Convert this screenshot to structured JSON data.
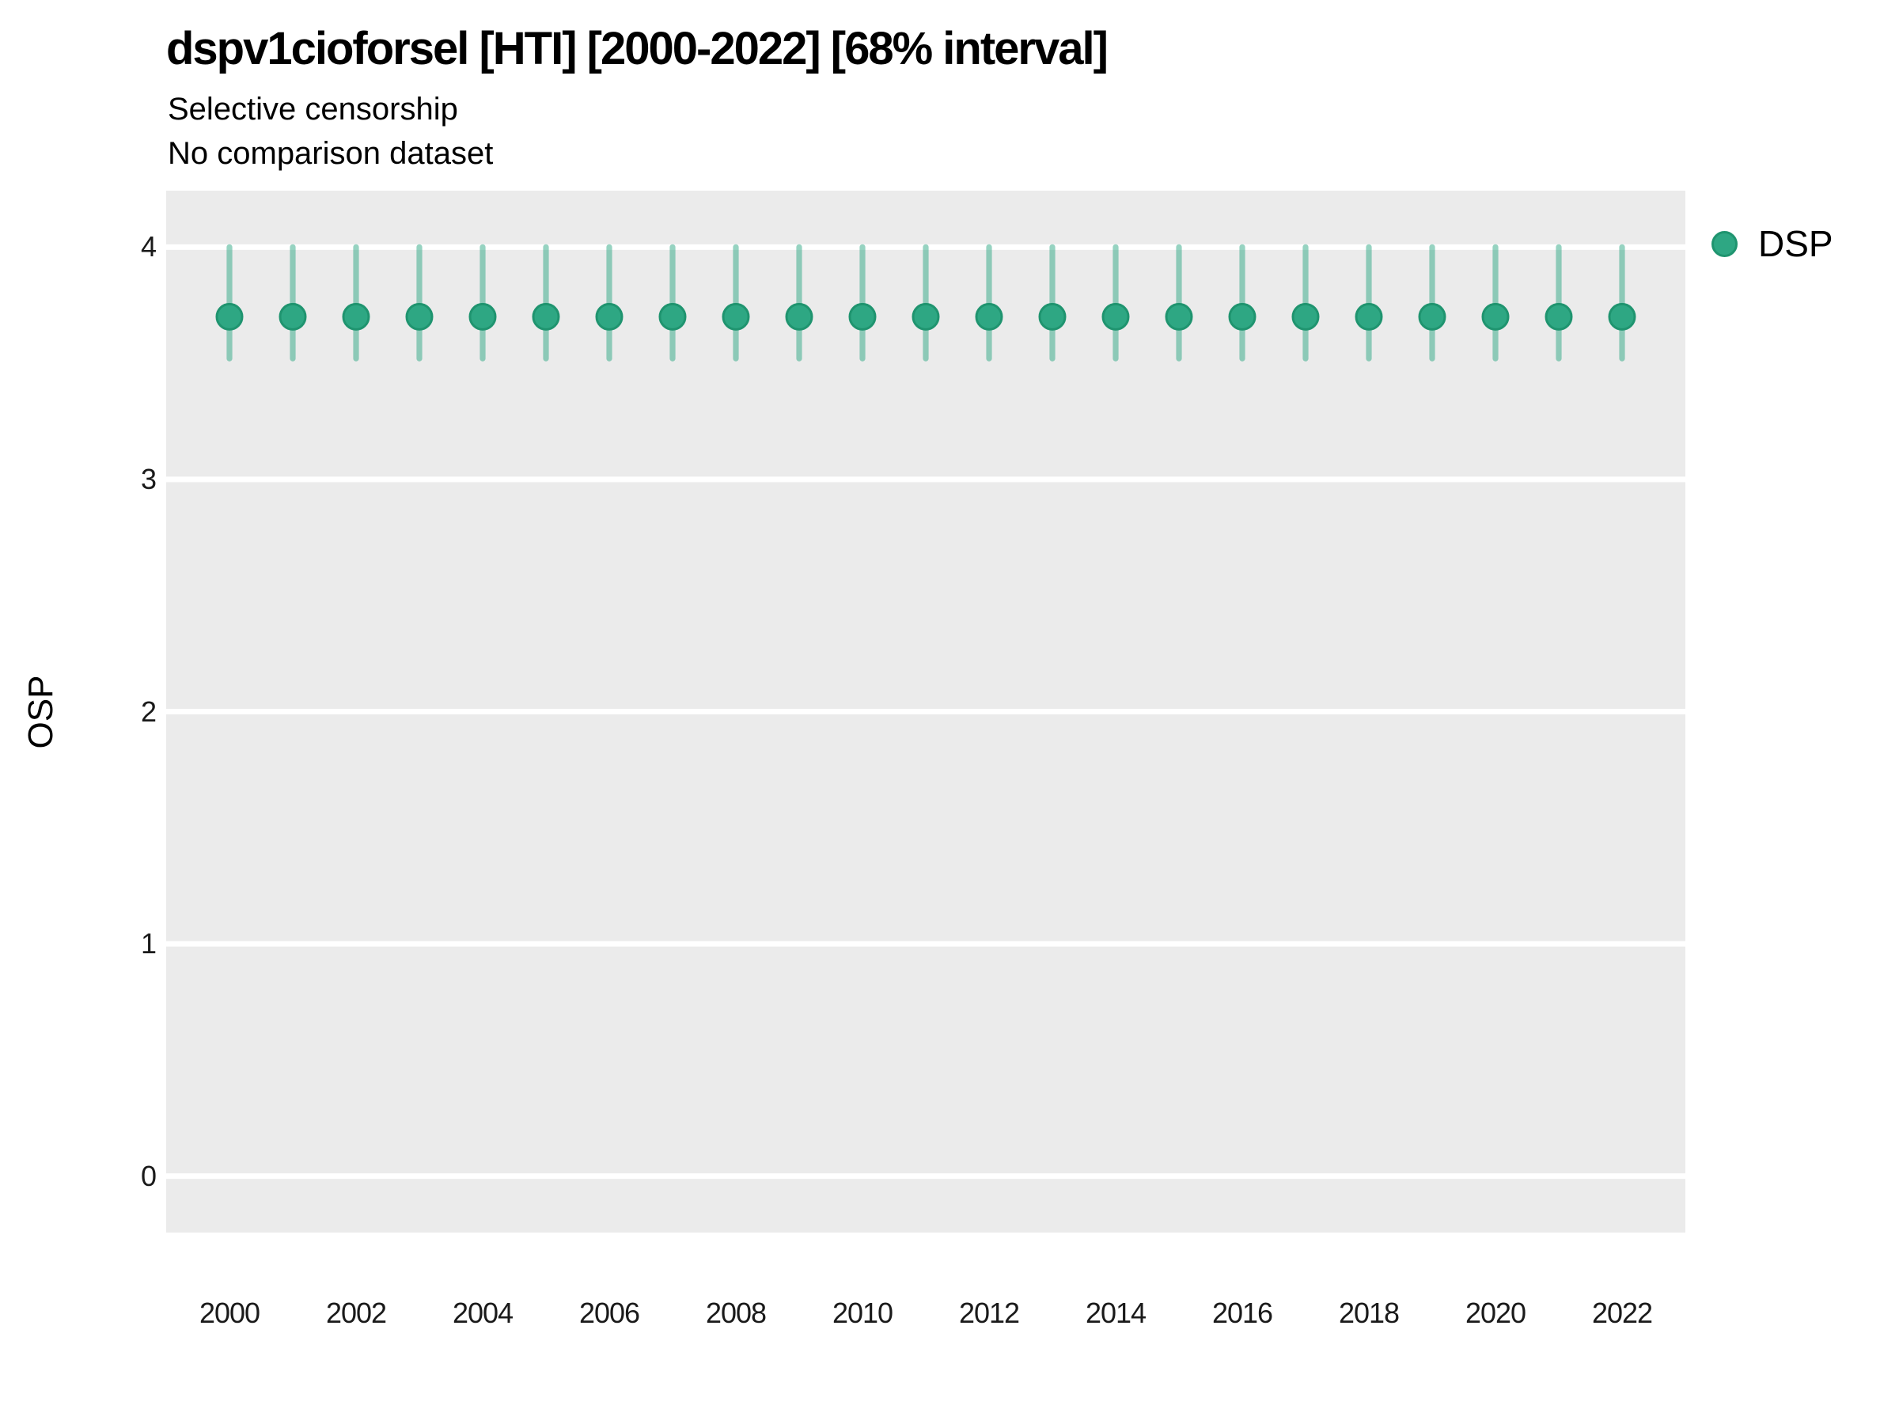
{
  "title": "dspv1cioforsel [HTI] [2000-2022] [68% interval]",
  "subtitle_line1": "Selective censorship",
  "subtitle_line2": "No comparison dataset",
  "y_axis_title": "OSP",
  "legend": {
    "label": "DSP",
    "position": "right-top"
  },
  "colors": {
    "panel_background": "#EBEBEB",
    "gridline": "#FFFFFF",
    "point_fill": "#2EA783",
    "point_stroke": "#1F946F",
    "error_bar": "rgba(46,167,131,0.5)",
    "text": "#000000"
  },
  "chart_data": {
    "type": "scatter",
    "subtype": "pointrange-errorbar",
    "title": "dspv1cioforsel [HTI] [2000-2022] [68% interval]",
    "subtitle": [
      "Selective censorship",
      "No comparison dataset"
    ],
    "interval": "68%",
    "xlabel": "",
    "ylabel": "OSP",
    "x": [
      2000,
      2001,
      2002,
      2003,
      2004,
      2005,
      2006,
      2007,
      2008,
      2009,
      2010,
      2011,
      2012,
      2013,
      2014,
      2015,
      2016,
      2017,
      2018,
      2019,
      2020,
      2021,
      2022
    ],
    "series": [
      {
        "name": "DSP",
        "values": [
          3.7,
          3.7,
          3.7,
          3.7,
          3.7,
          3.7,
          3.7,
          3.7,
          3.7,
          3.7,
          3.7,
          3.7,
          3.7,
          3.7,
          3.7,
          3.7,
          3.7,
          3.7,
          3.7,
          3.7,
          3.7,
          3.7,
          3.7
        ],
        "lower": [
          3.52,
          3.52,
          3.52,
          3.52,
          3.52,
          3.52,
          3.52,
          3.52,
          3.52,
          3.52,
          3.52,
          3.52,
          3.52,
          3.52,
          3.52,
          3.52,
          3.52,
          3.52,
          3.52,
          3.52,
          3.52,
          3.52,
          3.52
        ],
        "upper": [
          4.0,
          4.0,
          4.0,
          4.0,
          4.0,
          4.0,
          4.0,
          4.0,
          4.0,
          4.0,
          4.0,
          4.0,
          4.0,
          4.0,
          4.0,
          4.0,
          4.0,
          4.0,
          4.0,
          4.0,
          4.0,
          4.0,
          4.0
        ]
      }
    ],
    "xlim": [
      1999,
      2023
    ],
    "ylim": [
      -0.243,
      4.243
    ],
    "xticks": [
      2000,
      2002,
      2004,
      2006,
      2008,
      2010,
      2012,
      2014,
      2016,
      2018,
      2020,
      2022
    ],
    "yticks": [
      0,
      1,
      2,
      3,
      4
    ],
    "grid": "horizontal-major-only",
    "legend_position": "right-top"
  }
}
